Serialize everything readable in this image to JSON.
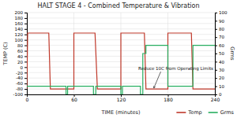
{
  "chart_data": {
    "type": "line",
    "title": "HALT STAGE 4 - Combined Temperature & Vibration",
    "xlabel": "TIME (minutes)",
    "ylabel": "TEMP (C)",
    "y2label": "Grms",
    "xlim": [
      0,
      240
    ],
    "ylim": [
      -100,
      200
    ],
    "y2lim": [
      0,
      100
    ],
    "xticks": [
      0,
      60,
      120,
      180,
      240
    ],
    "yticks": [
      -100,
      -80,
      -60,
      -40,
      -20,
      0,
      20,
      40,
      60,
      80,
      100,
      120,
      140,
      160,
      180,
      200
    ],
    "y2ticks": [
      0,
      10,
      20,
      30,
      40,
      50,
      60,
      70,
      80,
      90,
      100
    ],
    "grid": true,
    "legend": "bottom",
    "series": [
      {
        "name": "Temp",
        "color": "#c0392b",
        "x": [
          0,
          0,
          1,
          28,
          30,
          30,
          60,
          60,
          87,
          90,
          90,
          120,
          120,
          150,
          152,
          152,
          180,
          180,
          210,
          212,
          212,
          240
        ],
        "values": [
          -80,
          -80,
          125,
          125,
          -80,
          -80,
          -80,
          125,
          125,
          -80,
          -80,
          -80,
          125,
          125,
          -80,
          -80,
          -80,
          125,
          125,
          -80,
          -80,
          -80
        ]
      },
      {
        "name": "Grms",
        "color": "#27ae60",
        "axis": "y2",
        "x": [
          0,
          50,
          50,
          52,
          52,
          85,
          85,
          88,
          88,
          120,
          120,
          122,
          122,
          145,
          145,
          148,
          148,
          152,
          152,
          180,
          180,
          212,
          212,
          240
        ],
        "values": [
          10,
          10,
          0,
          0,
          10,
          10,
          0,
          0,
          10,
          10,
          0,
          0,
          10,
          10,
          0,
          0,
          50,
          50,
          60,
          60,
          10,
          10,
          60,
          60
        ]
      }
    ],
    "annotations": [
      {
        "text": "Reduce 10C from Operating Limits",
        "x": 162,
        "y": -80
      }
    ]
  }
}
